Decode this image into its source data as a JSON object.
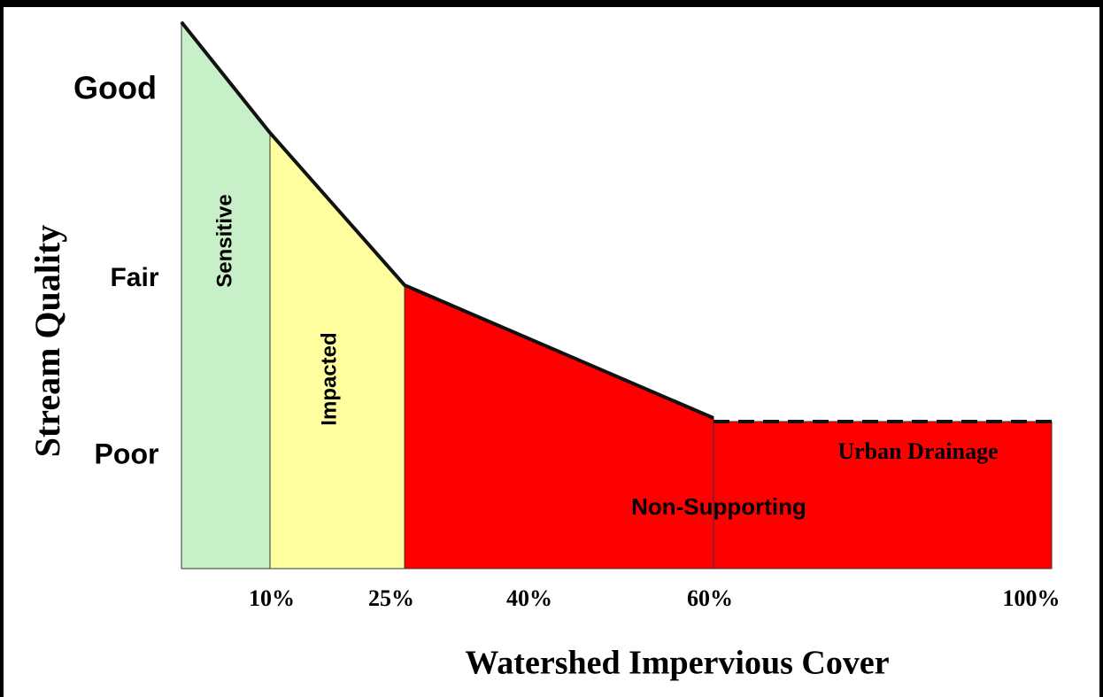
{
  "y_axis": {
    "title": "Stream Quality",
    "labels": [
      "Good",
      "Fair",
      "Poor"
    ]
  },
  "x_axis": {
    "title": "Watershed Impervious Cover",
    "labels": [
      "10%",
      "25%",
      "40%",
      "60%",
      "100%"
    ]
  },
  "zones": [
    "Sensitive",
    "Impacted",
    "Non-Supporting",
    "Urban Drainage"
  ]
}
